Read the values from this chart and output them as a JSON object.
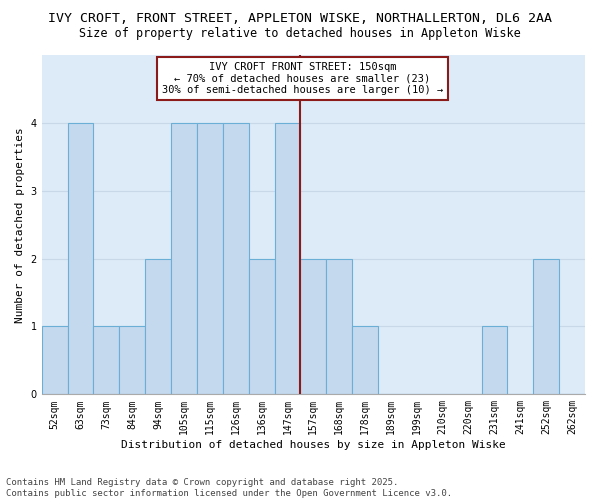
{
  "title": "IVY CROFT, FRONT STREET, APPLETON WISKE, NORTHALLERTON, DL6 2AA",
  "subtitle": "Size of property relative to detached houses in Appleton Wiske",
  "xlabel": "Distribution of detached houses by size in Appleton Wiske",
  "ylabel": "Number of detached properties",
  "categories": [
    "52sqm",
    "63sqm",
    "73sqm",
    "84sqm",
    "94sqm",
    "105sqm",
    "115sqm",
    "126sqm",
    "136sqm",
    "147sqm",
    "157sqm",
    "168sqm",
    "178sqm",
    "189sqm",
    "199sqm",
    "210sqm",
    "220sqm",
    "231sqm",
    "241sqm",
    "252sqm",
    "262sqm"
  ],
  "values": [
    1,
    4,
    1,
    1,
    2,
    4,
    4,
    4,
    2,
    4,
    2,
    2,
    1,
    0,
    0,
    0,
    0,
    1,
    0,
    2,
    0
  ],
  "bar_color": "#c5d9ee",
  "bar_edge_color": "#6baed6",
  "highlight_line_index": 9,
  "highlight_line_color": "#8b1a1a",
  "annotation_text": "IVY CROFT FRONT STREET: 150sqm\n← 70% of detached houses are smaller (23)\n30% of semi-detached houses are larger (10) →",
  "annotation_box_color": "#8b1a1a",
  "ylim": [
    0,
    5
  ],
  "yticks": [
    0,
    1,
    2,
    3,
    4,
    5
  ],
  "background_color": "#ddeaf7",
  "grid_color": "#c8d8e8",
  "title_fontsize": 9.5,
  "subtitle_fontsize": 8.5,
  "xlabel_fontsize": 8,
  "ylabel_fontsize": 8,
  "tick_fontsize": 7,
  "annotation_fontsize": 7.5,
  "footer_fontsize": 6.5,
  "footer": "Contains HM Land Registry data © Crown copyright and database right 2025.\nContains public sector information licensed under the Open Government Licence v3.0."
}
